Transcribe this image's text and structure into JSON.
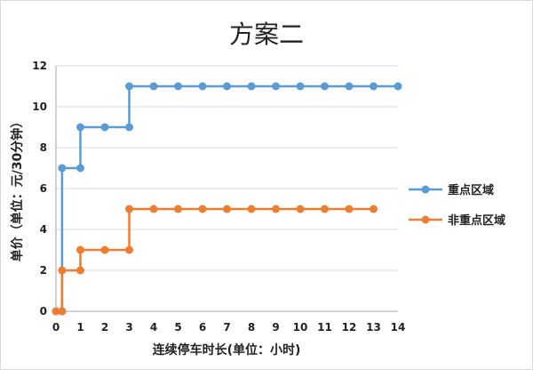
{
  "chart_data": {
    "type": "line",
    "title": "方案二",
    "xlabel": "连续停车时长(单位：小时)",
    "ylabel": "单价（单位：元/30分钟）",
    "xlim": [
      0,
      14
    ],
    "ylim": [
      0,
      12
    ],
    "x_ticks": [
      0,
      1,
      2,
      3,
      4,
      5,
      6,
      7,
      8,
      9,
      10,
      11,
      12,
      13,
      14
    ],
    "y_ticks": [
      0,
      2,
      4,
      6,
      8,
      10,
      12
    ],
    "grid": "horizontal",
    "legend_position": "right",
    "series": [
      {
        "name": "重点区域",
        "color": "#5b9bd5",
        "points": [
          [
            0,
            0
          ],
          [
            0.25,
            0
          ],
          [
            0.25,
            7
          ],
          [
            1,
            7
          ],
          [
            1,
            9
          ],
          [
            2,
            9
          ],
          [
            3,
            9
          ],
          [
            3,
            11
          ],
          [
            4,
            11
          ],
          [
            5,
            11
          ],
          [
            6,
            11
          ],
          [
            7,
            11
          ],
          [
            8,
            11
          ],
          [
            9,
            11
          ],
          [
            10,
            11
          ],
          [
            11,
            11
          ],
          [
            12,
            11
          ],
          [
            13,
            11
          ],
          [
            14,
            11
          ]
        ]
      },
      {
        "name": "非重点区域",
        "color": "#ed7d31",
        "points": [
          [
            0,
            0
          ],
          [
            0.25,
            0
          ],
          [
            0.25,
            2
          ],
          [
            1,
            2
          ],
          [
            1,
            3
          ],
          [
            2,
            3
          ],
          [
            3,
            3
          ],
          [
            3,
            5
          ],
          [
            4,
            5
          ],
          [
            5,
            5
          ],
          [
            6,
            5
          ],
          [
            7,
            5
          ],
          [
            8,
            5
          ],
          [
            9,
            5
          ],
          [
            10,
            5
          ],
          [
            11,
            5
          ],
          [
            12,
            5
          ],
          [
            13,
            5
          ]
        ]
      }
    ]
  },
  "colors": {
    "axis": "#a6a6a6",
    "grid": "#d9d9d9"
  }
}
